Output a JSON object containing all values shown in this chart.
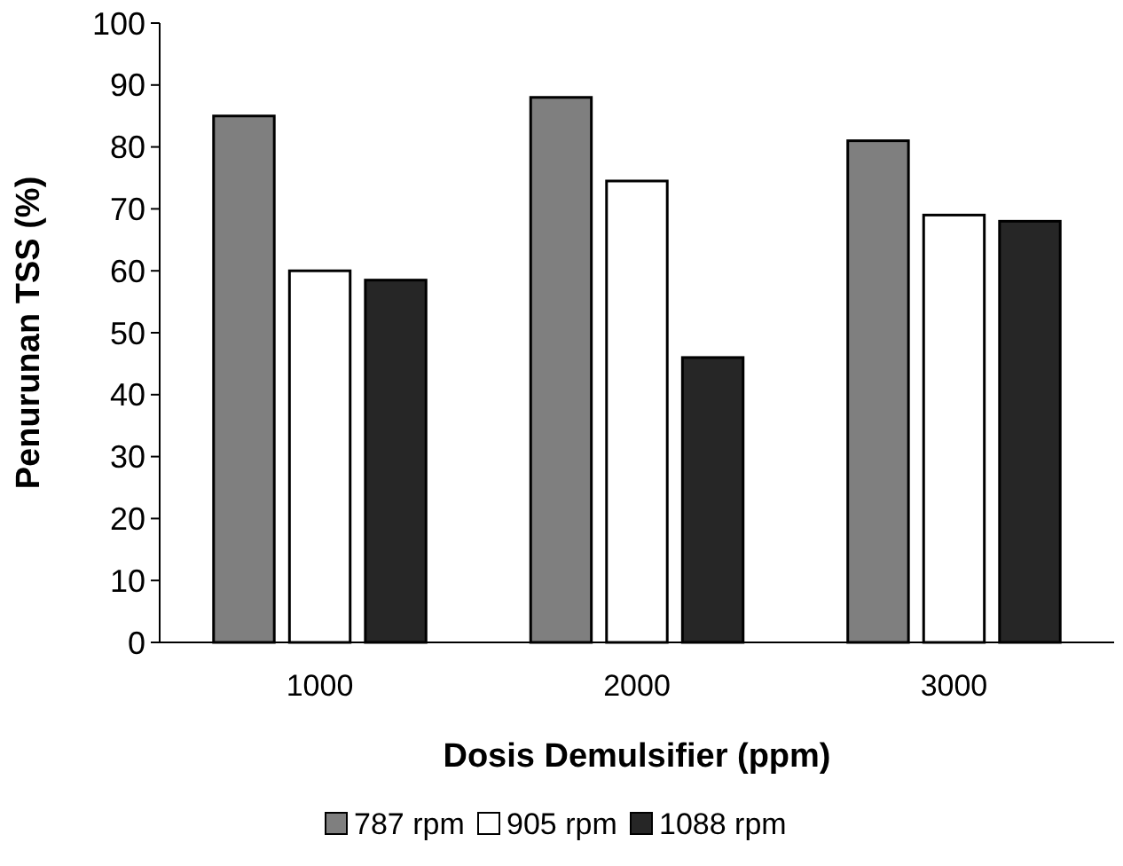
{
  "chart_data": {
    "type": "bar",
    "xlabel": "Dosis Demulsifier (ppm)",
    "ylabel": "Penurunan  TSS (%)",
    "categories": [
      "1000",
      "2000",
      "3000"
    ],
    "series": [
      {
        "name": "787 rpm",
        "color": "#7f7f7f",
        "values": [
          85,
          88,
          81
        ]
      },
      {
        "name": "905 rpm",
        "color": "#ffffff",
        "values": [
          60,
          74.5,
          69
        ]
      },
      {
        "name": "1088 rpm",
        "color": "#262626",
        "values": [
          58.5,
          46,
          68
        ]
      }
    ],
    "ylim": [
      0,
      100
    ],
    "yticks": [
      0,
      10,
      20,
      30,
      40,
      50,
      60,
      70,
      80,
      90,
      100
    ],
    "grid": false,
    "legend": "bottom"
  }
}
